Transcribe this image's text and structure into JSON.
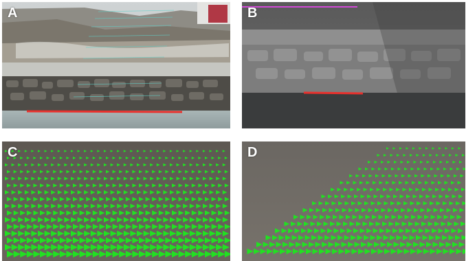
{
  "panels": [
    {
      "letter": "A",
      "description_key": "riverbank-stone-wall-with-pink-survey-line-color",
      "accent": "#e8302c"
    },
    {
      "letter": "B",
      "description_key": "grayscale-riverbank-with-magenta-line",
      "accent": "#e8302c"
    },
    {
      "letter": "C",
      "description_key": "water-surface-velocity-vectors",
      "accent": "#22e022"
    },
    {
      "letter": "D",
      "description_key": "water-surface-velocity-vectors",
      "accent": "#22e022"
    }
  ],
  "colors": {
    "reference_line": "#e8302c",
    "magenta_line": "#d24ad8",
    "vector": "#22e022",
    "cyan_grid": "#5fd0c8"
  }
}
